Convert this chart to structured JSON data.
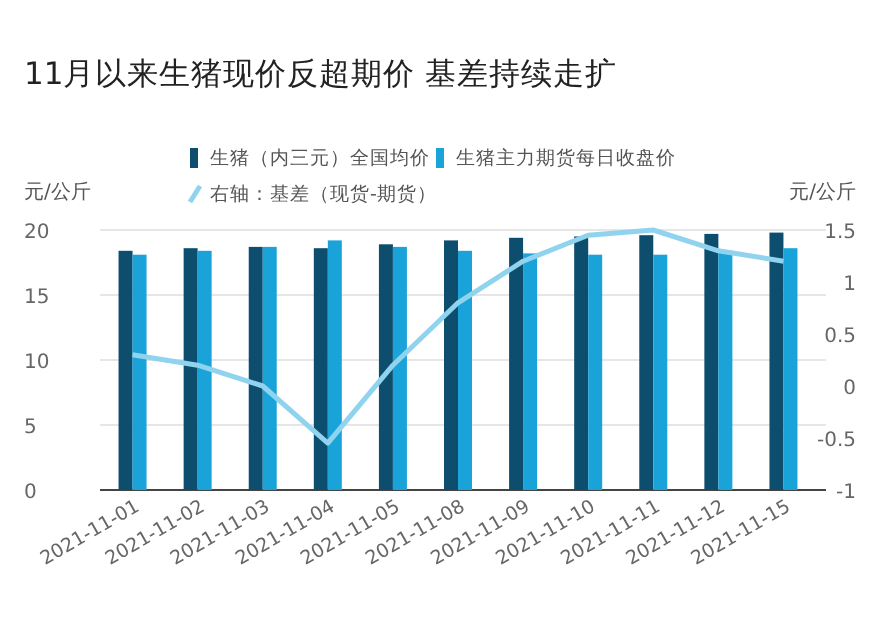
{
  "chart_data": {
    "type": "bar",
    "title": "11月以来生猪现价反超期价 基差持续走扩",
    "ylabel": "元/公斤",
    "y2label": "元/公斤",
    "categories": [
      "2021-11-01",
      "2021-11-02",
      "2021-11-03",
      "2021-11-04",
      "2021-11-05",
      "2021-11-08",
      "2021-11-09",
      "2021-11-10",
      "2021-11-11",
      "2021-11-12",
      "2021-11-15"
    ],
    "series": [
      {
        "name": "生猪（内三元）全国均价",
        "color": "#0d4d6e",
        "values": [
          18.4,
          18.6,
          18.7,
          18.6,
          18.9,
          19.2,
          19.4,
          19.5,
          19.6,
          19.7,
          19.8
        ]
      },
      {
        "name": "生猪主力期货每日收盘价",
        "color": "#1aa3d8",
        "values": [
          18.1,
          18.4,
          18.7,
          19.2,
          18.7,
          18.4,
          18.2,
          18.1,
          18.1,
          18.4,
          18.6
        ]
      },
      {
        "name": "右轴：基差（现货-期货）",
        "type": "line",
        "axis": "y2",
        "color": "#8fd3ef",
        "values": [
          0.3,
          0.2,
          0.0,
          -0.55,
          0.2,
          0.8,
          1.2,
          1.45,
          1.5,
          1.3,
          1.2
        ]
      }
    ],
    "ylim": [
      0,
      20
    ],
    "yticks": [
      0,
      5,
      10,
      15,
      20
    ],
    "y2lim": [
      -1,
      1.5
    ],
    "y2ticks": [
      -1,
      -0.5,
      0,
      0.5,
      1,
      1.5
    ],
    "grid": "y",
    "legend": "top",
    "marker": "none",
    "line_style": "solid"
  }
}
